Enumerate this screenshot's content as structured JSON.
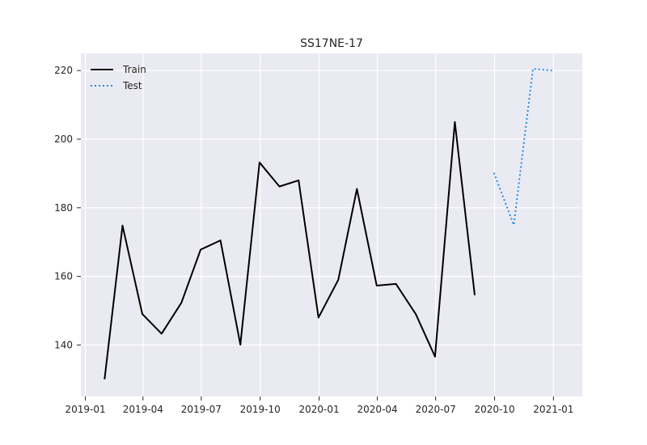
{
  "chart_data": {
    "type": "line",
    "title": "SS17NE-17",
    "xlabel": "",
    "ylabel": "",
    "x_tick_labels": [
      "2019-01",
      "2019-04",
      "2019-07",
      "2019-10",
      "2020-01",
      "2020-04",
      "2020-07",
      "2020-10",
      "2021-01"
    ],
    "y_ticks": [
      140,
      160,
      180,
      200,
      220
    ],
    "xlim": [
      "2018-12-25",
      "2021-02-15"
    ],
    "ylim": [
      125,
      225
    ],
    "grid": true,
    "legend_position": "top-left",
    "series": [
      {
        "name": "Train",
        "color": "#000000",
        "style": "solid",
        "x": [
          "2019-01-31",
          "2019-02-28",
          "2019-03-31",
          "2019-04-30",
          "2019-05-31",
          "2019-06-30",
          "2019-07-31",
          "2019-08-31",
          "2019-09-30",
          "2019-10-31",
          "2019-11-30",
          "2019-12-31",
          "2020-01-31",
          "2020-02-29",
          "2020-03-31",
          "2020-04-30",
          "2020-05-31",
          "2020-06-30",
          "2020-07-31",
          "2020-08-31"
        ],
        "values": [
          130.0,
          174.8,
          149.0,
          143.3,
          152.3,
          167.8,
          170.5,
          140.1,
          193.2,
          186.2,
          188.0,
          148.0,
          159.0,
          185.5,
          157.3,
          157.8,
          149.0,
          136.6,
          205.0,
          154.5
        ]
      },
      {
        "name": "Test",
        "color": "#1f8ce6",
        "style": "dotted",
        "x": [
          "2020-09-30",
          "2020-10-31",
          "2020-11-30",
          "2020-12-31"
        ],
        "values": [
          190.2,
          175.0,
          220.5,
          220.0
        ]
      }
    ]
  }
}
